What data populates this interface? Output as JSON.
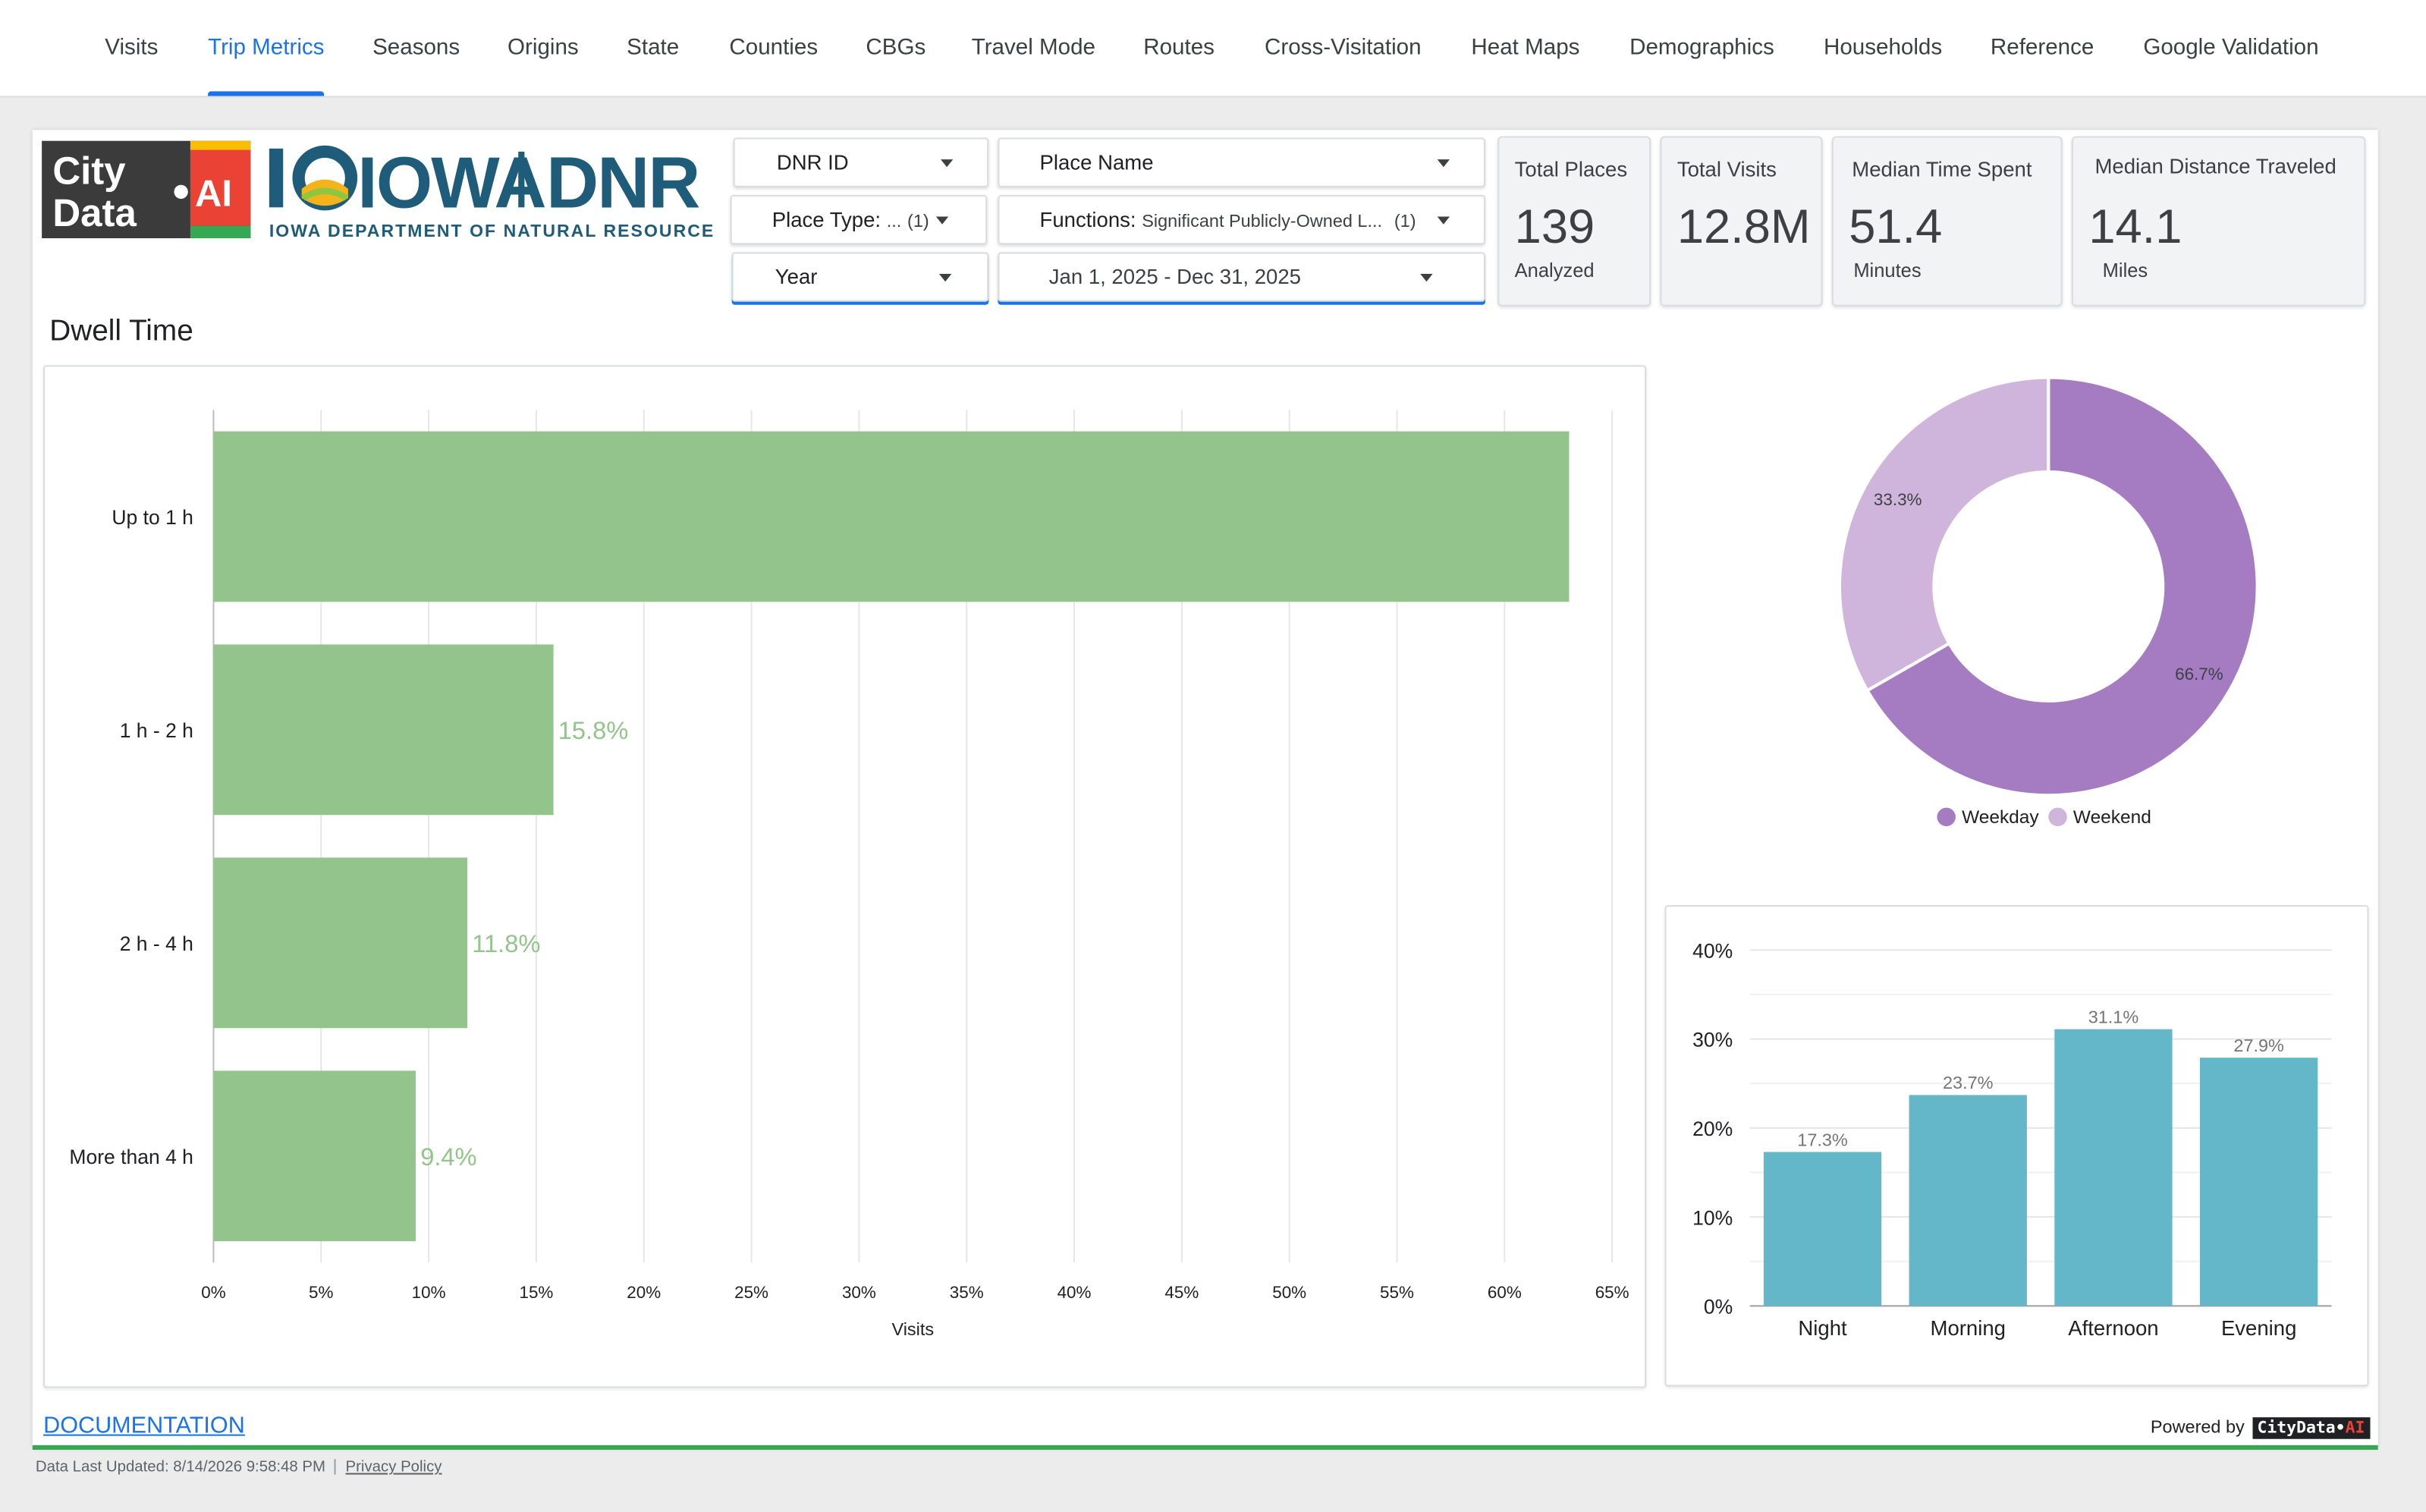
{
  "nav": {
    "tabs": [
      {
        "label": "Visits",
        "active": false
      },
      {
        "label": "Trip Metrics",
        "active": true
      },
      {
        "label": "Seasons",
        "active": false
      },
      {
        "label": "Origins",
        "active": false
      },
      {
        "label": "State",
        "active": false
      },
      {
        "label": "Counties",
        "active": false
      },
      {
        "label": "CBGs",
        "active": false
      },
      {
        "label": "Travel Mode",
        "active": false
      },
      {
        "label": "Routes",
        "active": false
      },
      {
        "label": "Cross-Visitation",
        "active": false
      },
      {
        "label": "Heat Maps",
        "active": false
      },
      {
        "label": "Demographics",
        "active": false
      },
      {
        "label": "Households",
        "active": false
      },
      {
        "label": "Reference",
        "active": false
      },
      {
        "label": "Google Validation",
        "active": false
      }
    ]
  },
  "logos": {
    "citydata": {
      "line1": "City",
      "line2": "Data",
      "ai": "AI"
    },
    "dnr": {
      "word1": "IOWA",
      "word2": "DNR",
      "tagline": "IOWA DEPARTMENT OF NATURAL RESOURCES"
    }
  },
  "controls": {
    "dnr_id": {
      "label": "DNR ID"
    },
    "place_name": {
      "label": "Place Name"
    },
    "place_type": {
      "label": "Place Type:",
      "value": "...",
      "count": "(1)"
    },
    "functions": {
      "label": "Functions:",
      "value": "Significant Publicly-Owned L...",
      "count": "(1)"
    },
    "year": {
      "label": "Year"
    },
    "date_range": {
      "label": "Jan 1, 2025 - Dec 31, 2025"
    }
  },
  "kpis": {
    "total_places": {
      "title": "Total Places",
      "value": "139",
      "sub": "Analyzed"
    },
    "total_visits": {
      "title": "Total Visits",
      "value": "12.8M",
      "sub": ""
    },
    "median_time": {
      "title": "Median Time Spent",
      "value": "51.4",
      "sub": "Minutes"
    },
    "median_distance": {
      "title": "Median Distance Traveled",
      "value": "14.1",
      "sub": "Miles"
    }
  },
  "sections": {
    "dwell_title": "Dwell Time"
  },
  "colors": {
    "dwell_bar": "#93c48b",
    "weekday": "#a57cc2",
    "weekend": "#cfb5dc",
    "daypart_bar": "#63b7c8",
    "accent": "#1a73e8"
  },
  "chart_data": [
    {
      "id": "dwell",
      "type": "bar",
      "orientation": "horizontal",
      "categories": [
        "Up to 1 h",
        "1 h - 2 h",
        "2 h - 4 h",
        "More than 4 h"
      ],
      "values": [
        63.0,
        15.8,
        11.8,
        9.4
      ],
      "data_labels": [
        "",
        "15.8%",
        "11.8%",
        "9.4%"
      ],
      "xlabel": "Visits",
      "xlim": [
        0,
        65
      ],
      "xticks": [
        0,
        5,
        10,
        15,
        20,
        25,
        30,
        35,
        40,
        45,
        50,
        55,
        60,
        65
      ],
      "xtick_labels": [
        "0%",
        "5%",
        "10%",
        "15%",
        "20%",
        "25%",
        "30%",
        "35%",
        "40%",
        "45%",
        "50%",
        "55%",
        "60%",
        "65%"
      ],
      "grid": true
    },
    {
      "id": "weekpart",
      "type": "pie",
      "donut": true,
      "categories": [
        "Weekday",
        "Weekend"
      ],
      "values": [
        66.7,
        33.3
      ],
      "data_labels": [
        "66.7%",
        "33.3%"
      ],
      "legend": "bottom"
    },
    {
      "id": "daypart",
      "type": "bar",
      "orientation": "vertical",
      "categories": [
        "Night",
        "Morning",
        "Afternoon",
        "Evening"
      ],
      "values": [
        17.3,
        23.7,
        31.1,
        27.9
      ],
      "data_labels": [
        "17.3%",
        "23.7%",
        "31.1%",
        "27.9%"
      ],
      "ylim": [
        0,
        40
      ],
      "yticks": [
        0,
        10,
        20,
        30,
        40
      ],
      "ytick_labels": [
        "0%",
        "10%",
        "20%",
        "30%",
        "40%"
      ],
      "grid": true
    }
  ],
  "footer": {
    "documentation": "DOCUMENTATION",
    "powered_by": "Powered by",
    "powered_badge_main": "CityData",
    "powered_badge_ai": "AI",
    "last_updated": "Data Last Updated: 8/14/2026 9:58:48 PM",
    "privacy": "Privacy Policy"
  }
}
